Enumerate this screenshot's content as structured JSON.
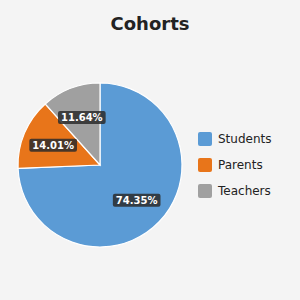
{
  "chart_data": {
    "type": "pie",
    "title": "Cohorts",
    "categories": [
      "Students",
      "Parents",
      "Teachers"
    ],
    "values": [
      74.35,
      14.01,
      11.64
    ],
    "value_labels": [
      "74.35%",
      "14.01%",
      "11.64%"
    ],
    "colors": [
      "#5B9BD5",
      "#E8751A",
      "#A0A0A0"
    ],
    "data_labels": true,
    "legend": "right"
  }
}
